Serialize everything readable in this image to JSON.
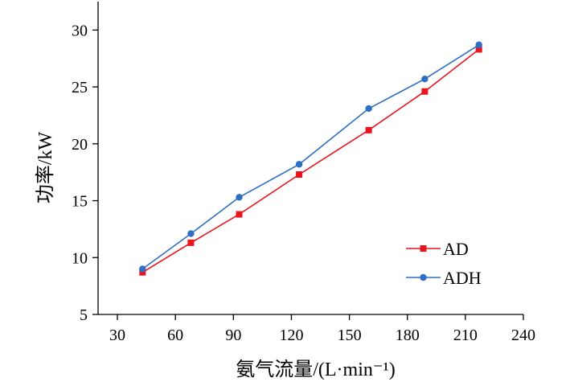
{
  "chart_data": {
    "type": "line",
    "title": "",
    "xlabel": "氨气流量/(L·min⁻¹)",
    "ylabel": "功率/kW",
    "xlim": [
      20,
      240
    ],
    "ylim": [
      5,
      32.5
    ],
    "xticks": [
      30,
      60,
      90,
      120,
      150,
      180,
      210,
      240
    ],
    "yticks": [
      5,
      10,
      15,
      20,
      25,
      30
    ],
    "grid": false,
    "legend_position": "lower-right",
    "series": [
      {
        "name": "AD",
        "color": "#e8141e",
        "marker": "square",
        "x": [
          43,
          68,
          93,
          124,
          160,
          189,
          217
        ],
        "y": [
          8.7,
          11.3,
          13.8,
          17.3,
          21.2,
          24.6,
          28.3
        ]
      },
      {
        "name": "ADH",
        "color": "#2e6fc4",
        "marker": "circle",
        "x": [
          43,
          68,
          93,
          124,
          160,
          189,
          217
        ],
        "y": [
          9.0,
          12.1,
          15.3,
          18.2,
          23.1,
          25.7,
          28.7
        ]
      }
    ]
  }
}
